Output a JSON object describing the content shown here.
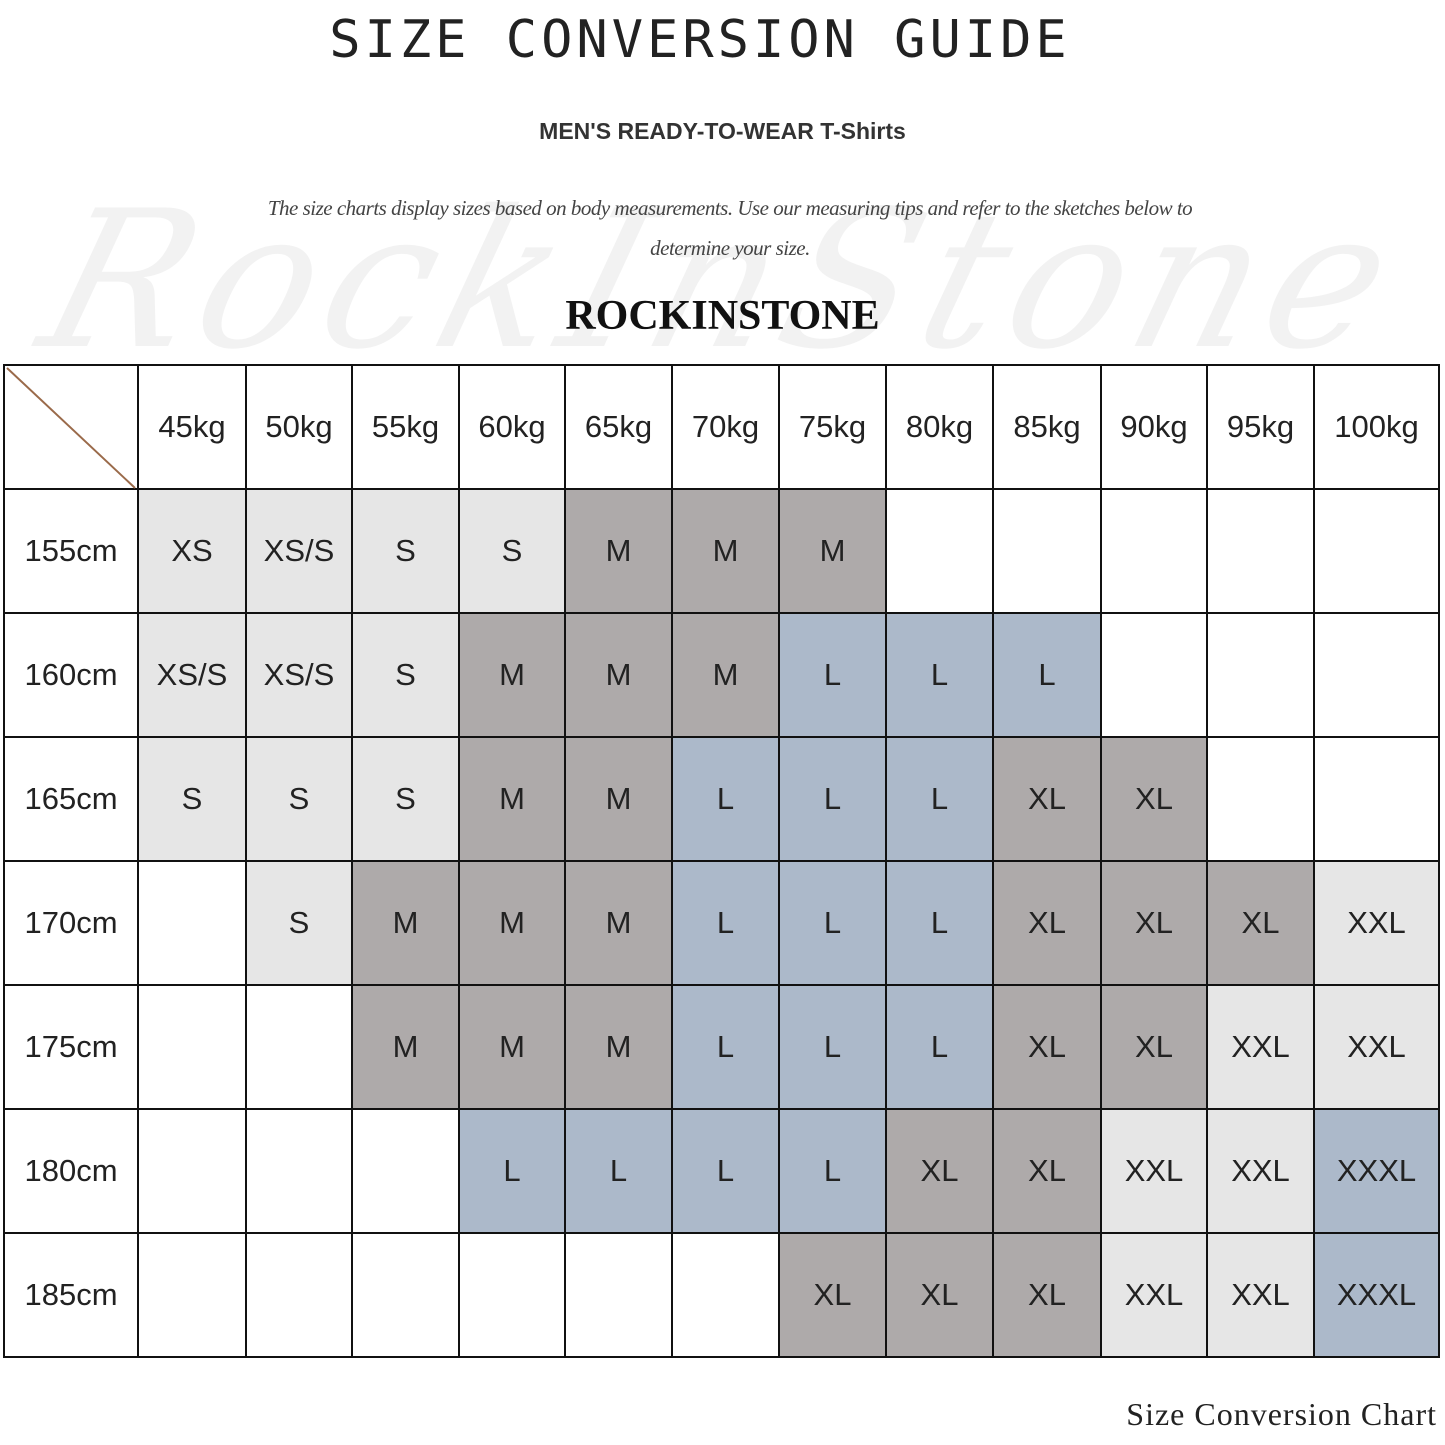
{
  "title": "SIZE CONVERSION GUIDE",
  "subtitle": "MEN'S READY-TO-WEAR T-Shirts",
  "description": "The size charts display sizes based on body measurements. Use our measuring tips and refer to the sketches below to determine your size.",
  "watermark": "RockInStone",
  "brand": "ROCKINSTONE",
  "footer": "Size Conversion Chart",
  "colors": {
    "W": "#ffffff",
    "L": "#e6e6e6",
    "D": "#aeaaaa",
    "B": "#acb9ca",
    "corner_line": "#9a6a4a"
  },
  "chart_data": {
    "type": "table",
    "columns": [
      "45kg",
      "50kg",
      "55kg",
      "60kg",
      "65kg",
      "70kg",
      "75kg",
      "80kg",
      "85kg",
      "90kg",
      "95kg",
      "100kg"
    ],
    "rows": [
      {
        "height": "155cm",
        "sizes": [
          "XS",
          "XS/S",
          "S",
          "S",
          "M",
          "M",
          "M",
          "",
          "",
          "",
          "",
          ""
        ],
        "tones": [
          "L",
          "L",
          "L",
          "L",
          "D",
          "D",
          "D",
          "W",
          "W",
          "W",
          "W",
          "W"
        ]
      },
      {
        "height": "160cm",
        "sizes": [
          "XS/S",
          "XS/S",
          "S",
          "M",
          "M",
          "M",
          "L",
          "L",
          "L",
          "",
          "",
          ""
        ],
        "tones": [
          "L",
          "L",
          "L",
          "D",
          "D",
          "D",
          "B",
          "B",
          "B",
          "W",
          "W",
          "W"
        ]
      },
      {
        "height": "165cm",
        "sizes": [
          "S",
          "S",
          "S",
          "M",
          "M",
          "L",
          "L",
          "L",
          "XL",
          "XL",
          "",
          ""
        ],
        "tones": [
          "L",
          "L",
          "L",
          "D",
          "D",
          "B",
          "B",
          "B",
          "D",
          "D",
          "W",
          "W"
        ]
      },
      {
        "height": "170cm",
        "sizes": [
          "",
          "S",
          "M",
          "M",
          "M",
          "L",
          "L",
          "L",
          "XL",
          "XL",
          "XL",
          "XXL"
        ],
        "tones": [
          "W",
          "L",
          "D",
          "D",
          "D",
          "B",
          "B",
          "B",
          "D",
          "D",
          "D",
          "L"
        ]
      },
      {
        "height": "175cm",
        "sizes": [
          "",
          "",
          "M",
          "M",
          "M",
          "L",
          "L",
          "L",
          "XL",
          "XL",
          "XXL",
          "XXL"
        ],
        "tones": [
          "W",
          "W",
          "D",
          "D",
          "D",
          "B",
          "B",
          "B",
          "D",
          "D",
          "L",
          "L"
        ]
      },
      {
        "height": "180cm",
        "sizes": [
          "",
          "",
          "",
          "L",
          "L",
          "L",
          "L",
          "XL",
          "XL",
          "XXL",
          "XXL",
          "XXXL"
        ],
        "tones": [
          "W",
          "W",
          "W",
          "B",
          "B",
          "B",
          "B",
          "D",
          "D",
          "L",
          "L",
          "B"
        ]
      },
      {
        "height": "185cm",
        "sizes": [
          "",
          "",
          "",
          "",
          "",
          "",
          "XL",
          "XL",
          "XL",
          "XXL",
          "XXL",
          "XXXL"
        ],
        "tones": [
          "W",
          "W",
          "W",
          "W",
          "W",
          "W",
          "D",
          "D",
          "D",
          "L",
          "L",
          "B"
        ]
      }
    ]
  }
}
